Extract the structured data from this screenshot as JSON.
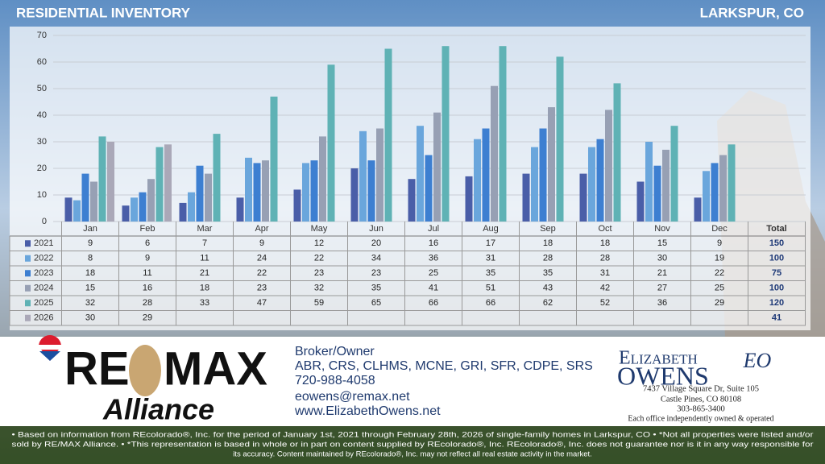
{
  "header": {
    "title": "RESIDENTIAL INVENTORY",
    "location": "LARKSPUR, CO"
  },
  "chart_data": {
    "type": "bar",
    "categories": [
      "Jan",
      "Feb",
      "Mar",
      "Apr",
      "May",
      "Jun",
      "Jul",
      "Aug",
      "Sep",
      "Oct",
      "Nov",
      "Dec"
    ],
    "total_label": "Total",
    "ylim": [
      0,
      70
    ],
    "yticks": [
      0,
      10,
      20,
      30,
      40,
      50,
      60,
      70
    ],
    "grid": true,
    "series": [
      {
        "name": "2021",
        "color": "#4a5ea8",
        "values": [
          9,
          6,
          7,
          9,
          12,
          20,
          16,
          17,
          18,
          18,
          15,
          9
        ],
        "total": 150
      },
      {
        "name": "2022",
        "color": "#6aa6dc",
        "values": [
          8,
          9,
          11,
          24,
          22,
          34,
          36,
          31,
          28,
          28,
          30,
          19
        ],
        "total": 100
      },
      {
        "name": "2023",
        "color": "#3d7fd1",
        "values": [
          18,
          11,
          21,
          22,
          23,
          23,
          25,
          35,
          35,
          31,
          21,
          22
        ],
        "total": 75
      },
      {
        "name": "2024",
        "color": "#97a0b4",
        "values": [
          15,
          16,
          18,
          23,
          32,
          35,
          41,
          51,
          43,
          42,
          27,
          25
        ],
        "total": 100
      },
      {
        "name": "2025",
        "color": "#5fb2b5",
        "values": [
          32,
          28,
          33,
          47,
          59,
          65,
          66,
          66,
          62,
          52,
          36,
          29
        ],
        "total": 120
      },
      {
        "name": "2026",
        "color": "#aaa8b8",
        "values": [
          30,
          29,
          null,
          null,
          null,
          null,
          null,
          null,
          null,
          null,
          null,
          null
        ],
        "total": 41
      }
    ]
  },
  "agent": {
    "brand_left": "RE",
    "brand_right": "MAX",
    "brand_office": "Alliance",
    "lines": [
      "Broker/Owner",
      "ABR, CRS, CLHMS, MCNE, GRI, SFR, CDPE, SRS",
      "720-988-4058",
      "eowens@remax.net",
      "www.ElizabethOwens.net"
    ],
    "logo_first": "Elizabeth",
    "logo_last": "Owens",
    "logo_monogram": "EO",
    "address": [
      "7437 Village Square Dr, Suite 105",
      "Castle Pines, CO 80108",
      "303-865-3400",
      "Each office independently owned & operated"
    ]
  },
  "disclaimer": [
    "• Based on information from REcolorado®, Inc. for the period of January 1st, 2021 through February 28th, 2026 of single-family homes in Larkspur, CO • *Not all properties were listed and/or",
    "sold by RE/MAX Alliance. • *This representation is based in whole or in part on content supplied by REcolorado®, Inc. REcolorado®, Inc. does not guarantee nor is it in any way responsible for",
    "its accuracy. Content maintained by REcolorado®, Inc. may not reflect all real estate activity in the market."
  ]
}
